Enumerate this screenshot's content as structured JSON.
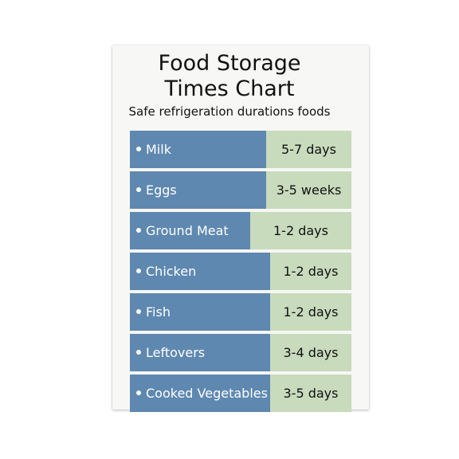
{
  "chart": {
    "title_line1": "Food Storage",
    "title_line2": "Times Chart",
    "subtitle": "Safe refrigeration durations foods"
  },
  "items": [
    {
      "food": "Milk",
      "duration": "5-7 days"
    },
    {
      "food": "Eggs",
      "duration": "3-5 weeks"
    },
    {
      "food": "Ground Meat",
      "duration": "1-2 days"
    },
    {
      "food": "Chicken",
      "duration": "1-2 days"
    },
    {
      "food": "Fish",
      "duration": "1-2 days"
    },
    {
      "food": "Leftovers",
      "duration": "3-4 days"
    },
    {
      "food": "Cooked Vegetables",
      "duration": "3-5 days"
    }
  ],
  "colors": {
    "food_bar": "#5e88b0",
    "duration_bar": "#c8dbbd",
    "card": "#f7f7f5"
  }
}
